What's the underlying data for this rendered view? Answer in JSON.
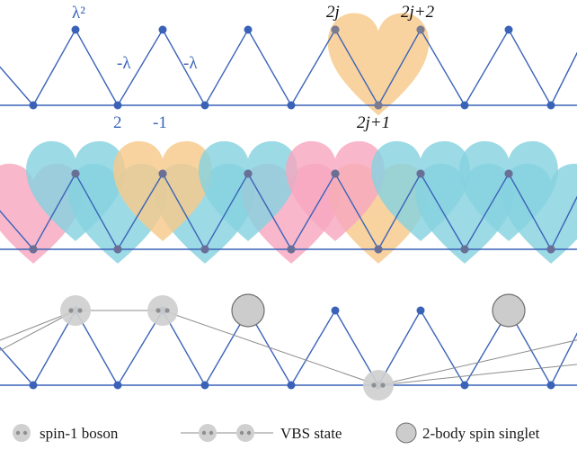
{
  "colors": {
    "lattice": "#3a63b8",
    "node": "#3a63b8",
    "heart_orange": "#f6c98a",
    "heart_pink": "#f7a7c0",
    "heart_cyan": "#86d2df",
    "boson_fill": "#cfcfcf",
    "boson_stroke": "#9a9a9a",
    "singlet_fill": "#cccccc",
    "singlet_stroke": "#6e6e6e",
    "vbs_line": "#8c8c8c"
  },
  "top_panel": {
    "labels": {
      "lambda_sq": "λ²",
      "minus_lambda_1": "-λ",
      "minus_lambda_2": "-λ",
      "two": "2",
      "minus_one": "-1",
      "site_2j": "2j",
      "site_2j_plus_2": "2j+2",
      "site_2j_plus_1": "2j+1"
    }
  },
  "middle_panel": {
    "heart_colors": [
      "pink",
      "cyan",
      "cyan",
      "orange",
      "cyan",
      "cyan",
      "pink",
      "pink",
      "orange",
      "cyan",
      "cyan",
      "cyan"
    ]
  },
  "legend": {
    "boson": "spin-1 boson",
    "vbs": "VBS state",
    "singlet": "2-body spin singlet"
  }
}
